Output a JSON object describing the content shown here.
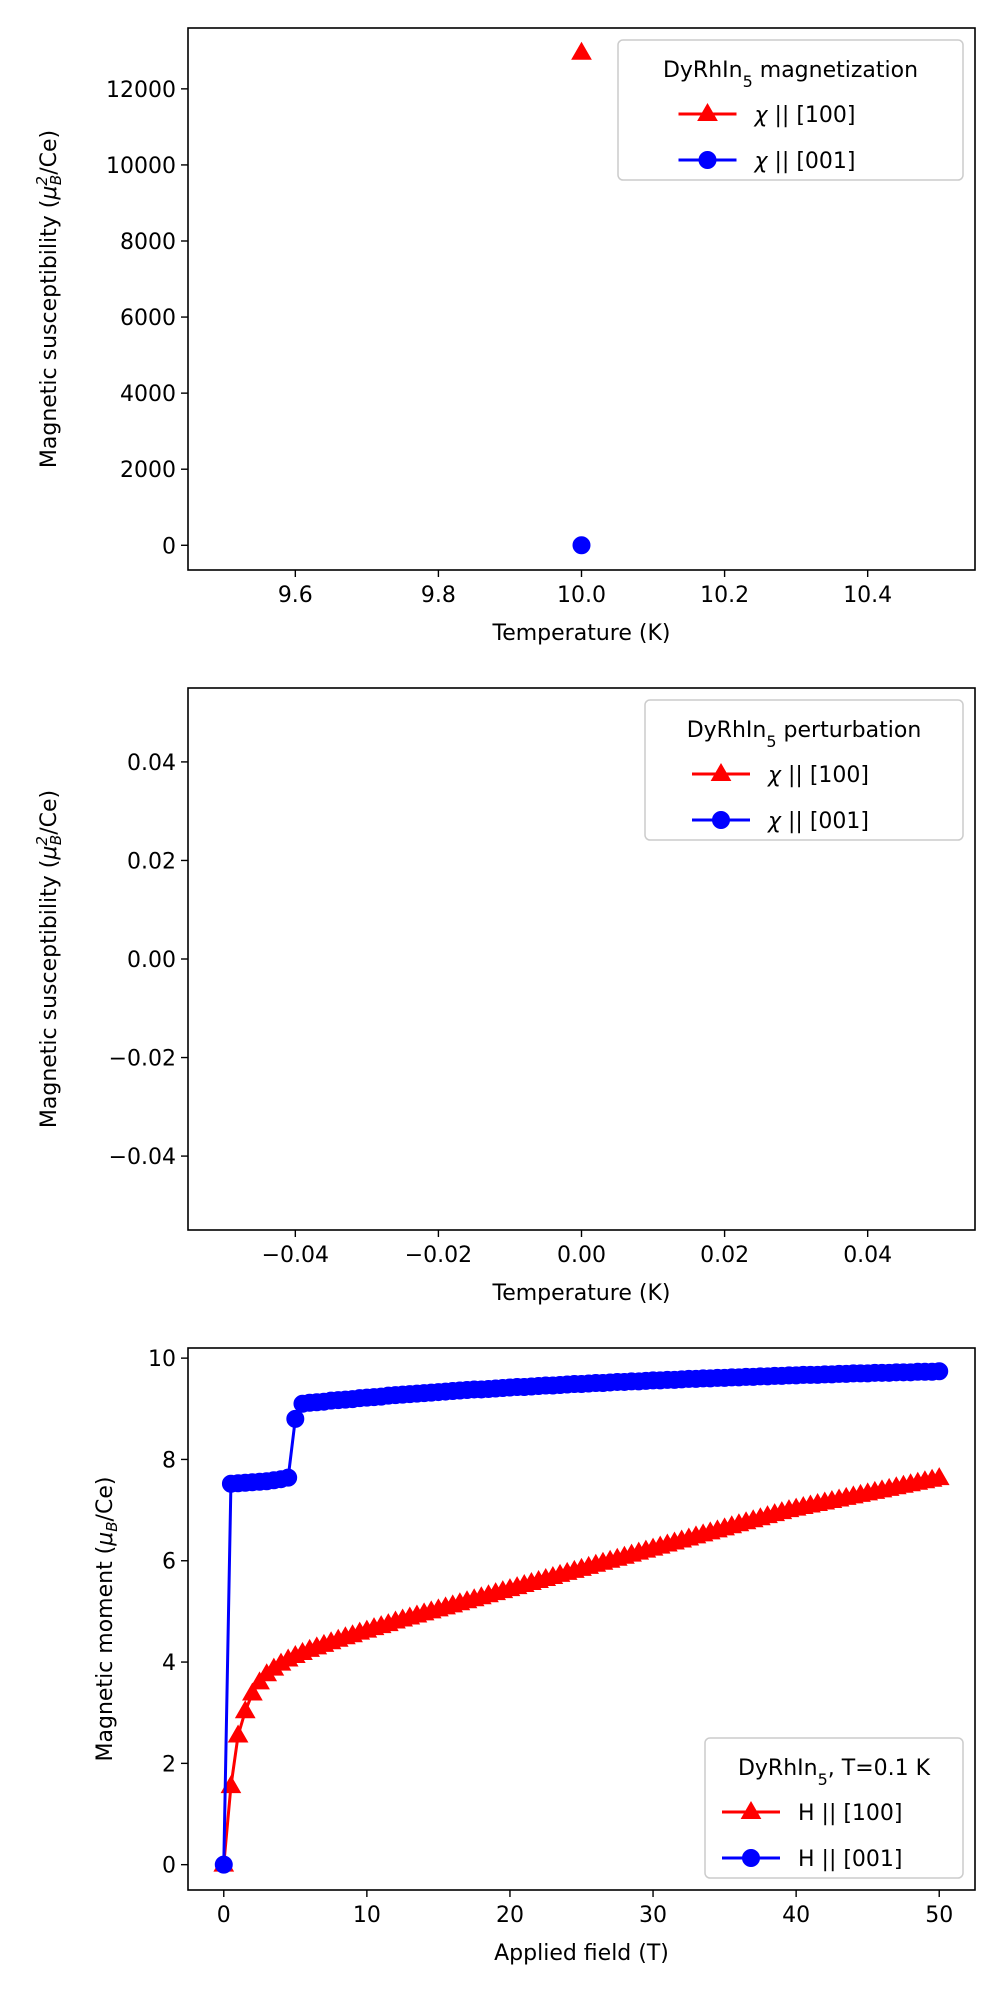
{
  "chart_data": [
    {
      "type": "scatter",
      "xlabel": "Temperature (K)",
      "ylabel": "Magnetic susceptibility (μ_B^2/Ce)",
      "xlim": [
        9.45,
        10.55
      ],
      "ylim": [
        -650,
        13600
      ],
      "xticks": [
        9.6,
        9.8,
        10.0,
        10.2,
        10.4
      ],
      "xtick_labels": [
        "9.6",
        "9.8",
        "10.0",
        "10.2",
        "10.4"
      ],
      "yticks": [
        0,
        2000,
        4000,
        6000,
        8000,
        10000,
        12000
      ],
      "ytick_labels": [
        "0",
        "2000",
        "4000",
        "6000",
        "8000",
        "10000",
        "12000"
      ],
      "legend": {
        "title": "DyRhIn5 magnetization",
        "placement": "top-right",
        "entries": [
          "χ || [100]",
          "χ || [001]"
        ]
      },
      "series": [
        {
          "name": "χ || [100]",
          "color": "#ff0000",
          "marker": "triangle",
          "x": [
            10.0
          ],
          "y": [
            12950
          ]
        },
        {
          "name": "χ || [001]",
          "color": "#0000ff",
          "marker": "circle",
          "x": [
            10.0
          ],
          "y": [
            0
          ]
        }
      ]
    },
    {
      "type": "line",
      "xlabel": "Temperature (K)",
      "ylabel": "Magnetic susceptibility (μ_B^2/Ce)",
      "xlim": [
        -0.055,
        0.055
      ],
      "ylim": [
        -0.055,
        0.055
      ],
      "xticks": [
        -0.04,
        -0.02,
        0.0,
        0.02,
        0.04
      ],
      "xtick_labels": [
        "−0.04",
        "−0.02",
        "0.00",
        "0.02",
        "0.04"
      ],
      "yticks": [
        -0.04,
        -0.02,
        0.0,
        0.02,
        0.04
      ],
      "ytick_labels": [
        "−0.04",
        "−0.02",
        "0.00",
        "0.02",
        "0.04"
      ],
      "legend": {
        "title": "DyRhIn5 perturbation",
        "placement": "top-right",
        "entries": [
          "χ || [100]",
          "χ || [001]"
        ]
      },
      "series": [
        {
          "name": "χ || [100]",
          "color": "#ff0000",
          "marker": "triangle",
          "x": [],
          "y": []
        },
        {
          "name": "χ || [001]",
          "color": "#0000ff",
          "marker": "circle",
          "x": [],
          "y": []
        }
      ]
    },
    {
      "type": "line",
      "xlabel": "Applied field (T)",
      "ylabel": "Magnetic moment (μ_B/Ce)",
      "xlim": [
        -2.5,
        52.5
      ],
      "ylim": [
        -0.5,
        10.2
      ],
      "xticks": [
        0,
        10,
        20,
        30,
        40,
        50
      ],
      "xtick_labels": [
        "0",
        "10",
        "20",
        "30",
        "40",
        "50"
      ],
      "yticks": [
        0,
        2,
        4,
        6,
        8,
        10
      ],
      "ytick_labels": [
        "0",
        "2",
        "4",
        "6",
        "8",
        "10"
      ],
      "legend": {
        "title": "DyRhIn5, T=0.1 K",
        "placement": "bottom-right",
        "entries": [
          "H || [100]",
          "H || [001]"
        ]
      },
      "series": [
        {
          "name": "H || [100]",
          "color": "#ff0000",
          "marker": "triangle",
          "x": [
            0,
            0.5,
            1,
            1.5,
            2,
            2.5,
            3,
            3.5,
            4,
            4.5,
            5,
            5.5,
            6,
            6.5,
            7,
            7.5,
            8,
            8.5,
            9,
            9.5,
            10,
            10.5,
            11,
            11.5,
            12,
            12.5,
            13,
            13.5,
            14,
            14.5,
            15,
            15.5,
            16,
            16.5,
            17,
            17.5,
            18,
            18.5,
            19,
            19.5,
            20,
            20.5,
            21,
            21.5,
            22,
            22.5,
            23,
            23.5,
            24,
            24.5,
            25,
            25.5,
            26,
            26.5,
            27,
            27.5,
            28,
            28.5,
            29,
            29.5,
            30,
            30.5,
            31,
            31.5,
            32,
            32.5,
            33,
            33.5,
            34,
            34.5,
            35,
            35.5,
            36,
            36.5,
            37,
            37.5,
            38,
            38.5,
            39,
            39.5,
            40,
            40.5,
            41,
            41.5,
            42,
            42.5,
            43,
            43.5,
            44,
            44.5,
            45,
            45.5,
            46,
            46.5,
            47,
            47.5,
            48,
            48.5,
            49,
            49.5,
            50
          ],
          "y": [
            0,
            1.55,
            2.55,
            3.03,
            3.38,
            3.6,
            3.76,
            3.87,
            3.97,
            4.05,
            4.12,
            4.18,
            4.24,
            4.29,
            4.34,
            4.39,
            4.44,
            4.49,
            4.53,
            4.58,
            4.62,
            4.67,
            4.71,
            4.75,
            4.8,
            4.84,
            4.88,
            4.92,
            4.96,
            5.0,
            5.04,
            5.08,
            5.12,
            5.16,
            5.2,
            5.24,
            5.28,
            5.32,
            5.36,
            5.4,
            5.44,
            5.48,
            5.52,
            5.56,
            5.6,
            5.64,
            5.68,
            5.72,
            5.76,
            5.8,
            5.84,
            5.88,
            5.92,
            5.96,
            6.0,
            6.04,
            6.08,
            6.12,
            6.16,
            6.2,
            6.24,
            6.28,
            6.32,
            6.36,
            6.4,
            6.44,
            6.48,
            6.52,
            6.56,
            6.6,
            6.64,
            6.68,
            6.72,
            6.76,
            6.8,
            6.84,
            6.88,
            6.92,
            6.96,
            7.0,
            7.03,
            7.06,
            7.09,
            7.12,
            7.15,
            7.18,
            7.21,
            7.24,
            7.27,
            7.3,
            7.33,
            7.36,
            7.39,
            7.42,
            7.45,
            7.48,
            7.51,
            7.54,
            7.57,
            7.6,
            7.63
          ]
        },
        {
          "name": "H || [001]",
          "color": "#0000ff",
          "marker": "circle",
          "x": [
            0,
            0.5,
            1,
            1.5,
            2,
            2.5,
            3,
            3.5,
            4,
            4.5,
            5,
            5.5,
            6,
            6.5,
            7,
            7.5,
            8,
            8.5,
            9,
            9.5,
            10,
            10.5,
            11,
            11.5,
            12,
            12.5,
            13,
            13.5,
            14,
            14.5,
            15,
            15.5,
            16,
            16.5,
            17,
            17.5,
            18,
            18.5,
            19,
            19.5,
            20,
            20.5,
            21,
            21.5,
            22,
            22.5,
            23,
            23.5,
            24,
            24.5,
            25,
            25.5,
            26,
            26.5,
            27,
            27.5,
            28,
            28.5,
            29,
            29.5,
            30,
            30.5,
            31,
            31.5,
            32,
            32.5,
            33,
            33.5,
            34,
            34.5,
            35,
            35.5,
            36,
            36.5,
            37,
            37.5,
            38,
            38.5,
            39,
            39.5,
            40,
            40.5,
            41,
            41.5,
            42,
            42.5,
            43,
            43.5,
            44,
            44.5,
            45,
            45.5,
            46,
            46.5,
            47,
            47.5,
            48,
            48.5,
            49,
            49.5,
            50
          ],
          "y": [
            0,
            7.52,
            7.53,
            7.54,
            7.55,
            7.56,
            7.57,
            7.59,
            7.61,
            7.64,
            8.8,
            9.1,
            9.12,
            9.13,
            9.14,
            9.16,
            9.17,
            9.18,
            9.19,
            9.21,
            9.22,
            9.23,
            9.24,
            9.26,
            9.27,
            9.28,
            9.29,
            9.3,
            9.31,
            9.32,
            9.33,
            9.34,
            9.35,
            9.36,
            9.37,
            9.38,
            9.38,
            9.39,
            9.4,
            9.41,
            9.42,
            9.43,
            9.43,
            9.44,
            9.45,
            9.46,
            9.46,
            9.47,
            9.48,
            9.49,
            9.49,
            9.5,
            9.51,
            9.51,
            9.52,
            9.53,
            9.53,
            9.54,
            9.54,
            9.55,
            9.56,
            9.56,
            9.57,
            9.57,
            9.58,
            9.59,
            9.59,
            9.6,
            9.6,
            9.61,
            9.61,
            9.62,
            9.62,
            9.63,
            9.63,
            9.64,
            9.64,
            9.65,
            9.65,
            9.66,
            9.66,
            9.67,
            9.67,
            9.67,
            9.68,
            9.68,
            9.69,
            9.69,
            9.7,
            9.7,
            9.7,
            9.71,
            9.71,
            9.71,
            9.72,
            9.72,
            9.72,
            9.73,
            9.73,
            9.73,
            9.74
          ]
        }
      ]
    }
  ]
}
